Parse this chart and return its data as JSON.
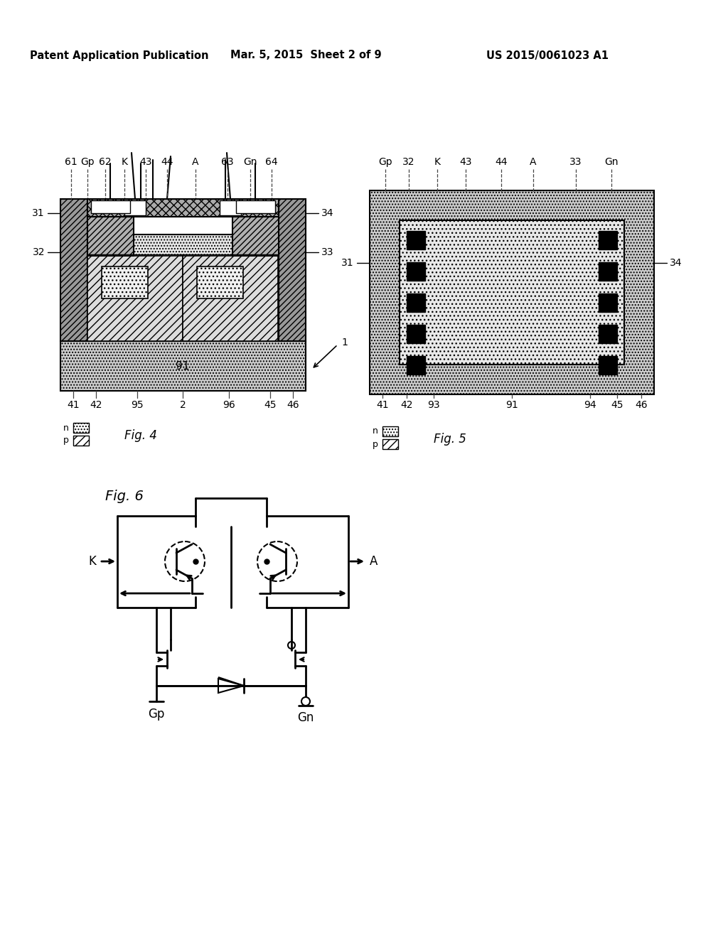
{
  "title_left": "Patent Application Publication",
  "title_mid": "Mar. 5, 2015  Sheet 2 of 9",
  "title_right": "US 2015/0061023 A1",
  "fig4_label": "Fig. 4",
  "fig5_label": "Fig. 5",
  "fig6_label": "Fig. 6",
  "background_color": "#ffffff",
  "line_color": "#000000",
  "fig4_top_labels": [
    "61",
    "Gp",
    "62",
    "K",
    "43",
    "44",
    "A",
    "63",
    "Gn",
    "64"
  ],
  "fig4_bot_labels": [
    "41",
    "42",
    "95",
    "2",
    "96",
    "45",
    "46"
  ],
  "fig5_top_labels": [
    "Gp",
    "32",
    "K",
    "43",
    "44",
    "A",
    "33",
    "Gn"
  ],
  "fig5_bot_labels": [
    "41",
    "42",
    "93",
    "91",
    "94",
    "45",
    "46"
  ]
}
